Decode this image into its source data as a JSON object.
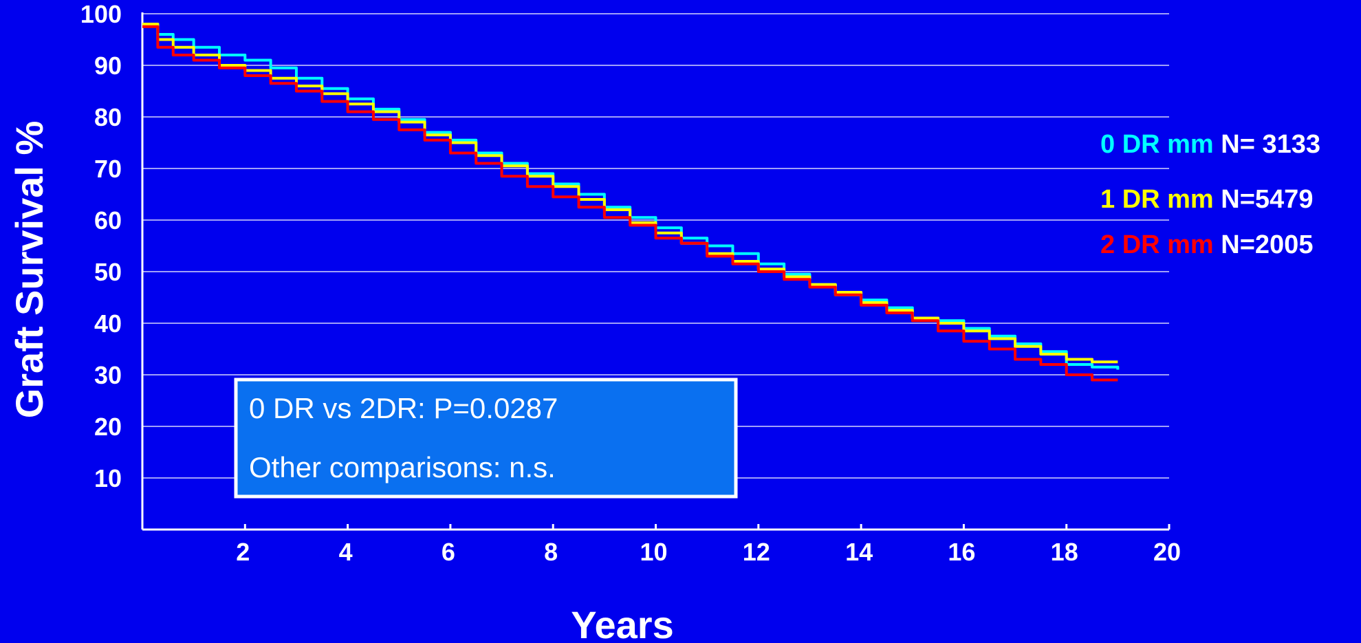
{
  "chart_data": {
    "type": "line",
    "title": "",
    "xlabel": "Years",
    "ylabel": "Graft Survival %",
    "xlim": [
      0,
      20
    ],
    "ylim": [
      0,
      100
    ],
    "x_ticks": [
      2,
      4,
      6,
      8,
      10,
      12,
      14,
      16,
      18,
      20
    ],
    "y_ticks": [
      10,
      20,
      30,
      40,
      50,
      60,
      70,
      80,
      90,
      100
    ],
    "grid": true,
    "legend_position": "right",
    "series": [
      {
        "name": "0 DR mm",
        "n_label": "N= 3133",
        "color": "#00ffff",
        "x": [
          0,
          0.3,
          0.6,
          1,
          1.5,
          2,
          2.5,
          3,
          3.5,
          4,
          4.5,
          5,
          5.5,
          6,
          6.5,
          7,
          7.5,
          8,
          8.5,
          9,
          9.5,
          10,
          10.5,
          11,
          11.5,
          12,
          12.5,
          13,
          13.5,
          14,
          14.5,
          15,
          15.5,
          16,
          16.5,
          17,
          17.5,
          18,
          18.5,
          19
        ],
        "y": [
          98,
          96,
          95,
          93.5,
          92,
          91,
          89.5,
          87.5,
          85.5,
          83.5,
          81.5,
          79.5,
          77,
          75.5,
          73,
          71,
          69,
          67,
          65,
          62.5,
          60.5,
          58.5,
          56.5,
          55,
          53.5,
          51.5,
          49.5,
          47.5,
          45.5,
          44.5,
          43,
          41,
          40.5,
          39,
          37.5,
          36,
          34.5,
          32,
          31.5,
          31
        ]
      },
      {
        "name": "1 DR mm",
        "n_label": "N=5479",
        "color": "#ffff00",
        "x": [
          0,
          0.3,
          0.6,
          1,
          1.5,
          2,
          2.5,
          3,
          3.5,
          4,
          4.5,
          5,
          5.5,
          6,
          6.5,
          7,
          7.5,
          8,
          8.5,
          9,
          9.5,
          10,
          10.5,
          11,
          11.5,
          12,
          12.5,
          13,
          13.5,
          14,
          14.5,
          15,
          15.5,
          16,
          16.5,
          17,
          17.5,
          18,
          18.5,
          19
        ],
        "y": [
          98,
          95,
          93.5,
          92,
          90,
          89,
          87.5,
          86,
          84.5,
          82.5,
          81,
          79,
          76.5,
          75,
          72.5,
          70.5,
          68.5,
          66.5,
          64,
          62,
          59.5,
          57.5,
          55.5,
          53.5,
          52,
          50.5,
          49,
          47.5,
          46,
          44,
          42.5,
          41,
          40,
          38.5,
          37,
          35.5,
          34,
          33,
          32.5,
          32.5
        ]
      },
      {
        "name": "2 DR mm",
        "n_label": "N=2005",
        "color": "#ff0000",
        "x": [
          0,
          0.3,
          0.6,
          1,
          1.5,
          2,
          2.5,
          3,
          3.5,
          4,
          4.5,
          5,
          5.5,
          6,
          6.5,
          7,
          7.5,
          8,
          8.5,
          9,
          9.5,
          10,
          10.5,
          11,
          11.5,
          12,
          12.5,
          13,
          13.5,
          14,
          14.5,
          15,
          15.5,
          16,
          16.5,
          17,
          17.5,
          18,
          18.5,
          19
        ],
        "y": [
          97.5,
          93.5,
          92,
          91,
          89.5,
          88,
          86.5,
          85,
          83,
          81,
          79.5,
          77.5,
          75.5,
          73,
          71,
          68.5,
          66.5,
          64.5,
          62.5,
          60.5,
          59,
          56.5,
          55.5,
          53,
          51.5,
          50,
          48.5,
          47,
          45.5,
          43.5,
          42,
          40.5,
          38.5,
          36.5,
          35,
          33,
          32,
          30,
          29,
          29
        ]
      }
    ]
  },
  "annotation": {
    "line1": "0 DR vs 2DR: P=0.0287",
    "line2": "Other comparisons: n.s."
  }
}
